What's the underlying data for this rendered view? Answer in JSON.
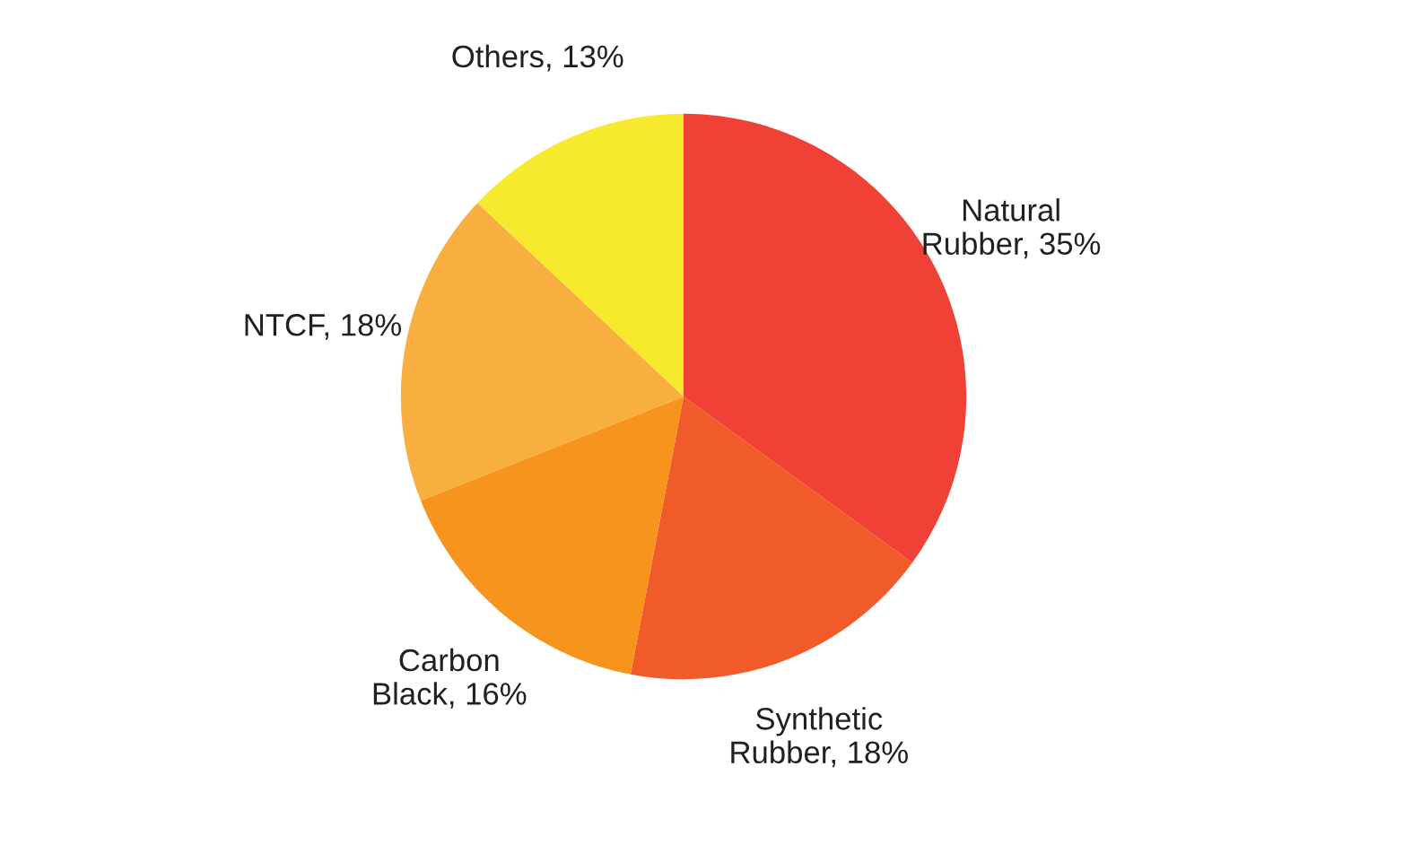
{
  "chart_data": {
    "type": "pie",
    "categories": [
      "Natural\nRubber",
      "Synthetic\nRubber",
      "Carbon\nBlack",
      "NTCF",
      "Others"
    ],
    "values": [
      35,
      18,
      16,
      18,
      13
    ],
    "value_labels": [
      "35%",
      "18%",
      "16%",
      "18%",
      "13%"
    ],
    "colors": [
      "#ef4136",
      "#f15a29",
      "#f7941d",
      "#f9ae40",
      "#f7e92d"
    ],
    "legend": false
  }
}
